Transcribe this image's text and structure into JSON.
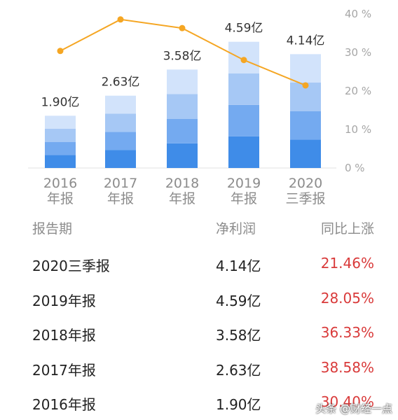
{
  "chart_data": {
    "type": "bar+line",
    "categories": [
      {
        "line1": "2016",
        "line2": "年报"
      },
      {
        "line1": "2017",
        "line2": "年报"
      },
      {
        "line1": "2018",
        "line2": "年报"
      },
      {
        "line1": "2019",
        "line2": "年报"
      },
      {
        "line1": "2020",
        "line2": "三季报"
      }
    ],
    "bar_values": [
      1.9,
      2.63,
      3.58,
      4.59,
      4.14
    ],
    "bar_labels": [
      "1.90亿",
      "2.63亿",
      "3.58亿",
      "4.59亿",
      "4.14亿"
    ],
    "line_values": [
      30.4,
      38.58,
      36.33,
      28.05,
      21.46
    ],
    "right_axis": {
      "ticks": [
        "0 %",
        "10 %",
        "20 %",
        "30 %",
        "40 %"
      ],
      "ylim": [
        0,
        40
      ]
    },
    "bar_ylim": [
      0,
      5.6
    ],
    "colors": {
      "bar_segments": [
        "#3f8ce8",
        "#74aaf0",
        "#a6c8f5",
        "#d2e3fb"
      ],
      "line": "#f5a623",
      "axis": "#e0e0e0"
    }
  },
  "table": {
    "headers": {
      "period": "报告期",
      "profit": "净利润",
      "growth": "同比上涨"
    },
    "rows": [
      {
        "period": "2020三季报",
        "profit": "4.14亿",
        "growth": "21.46%"
      },
      {
        "period": "2019年报",
        "profit": "4.59亿",
        "growth": "28.05%"
      },
      {
        "period": "2018年报",
        "profit": "3.58亿",
        "growth": "36.33%"
      },
      {
        "period": "2017年报",
        "profit": "2.63亿",
        "growth": "38.58%"
      },
      {
        "period": "2016年报",
        "profit": "1.90亿",
        "growth": "30.40%"
      }
    ]
  },
  "watermark": "头条 @财经一点"
}
